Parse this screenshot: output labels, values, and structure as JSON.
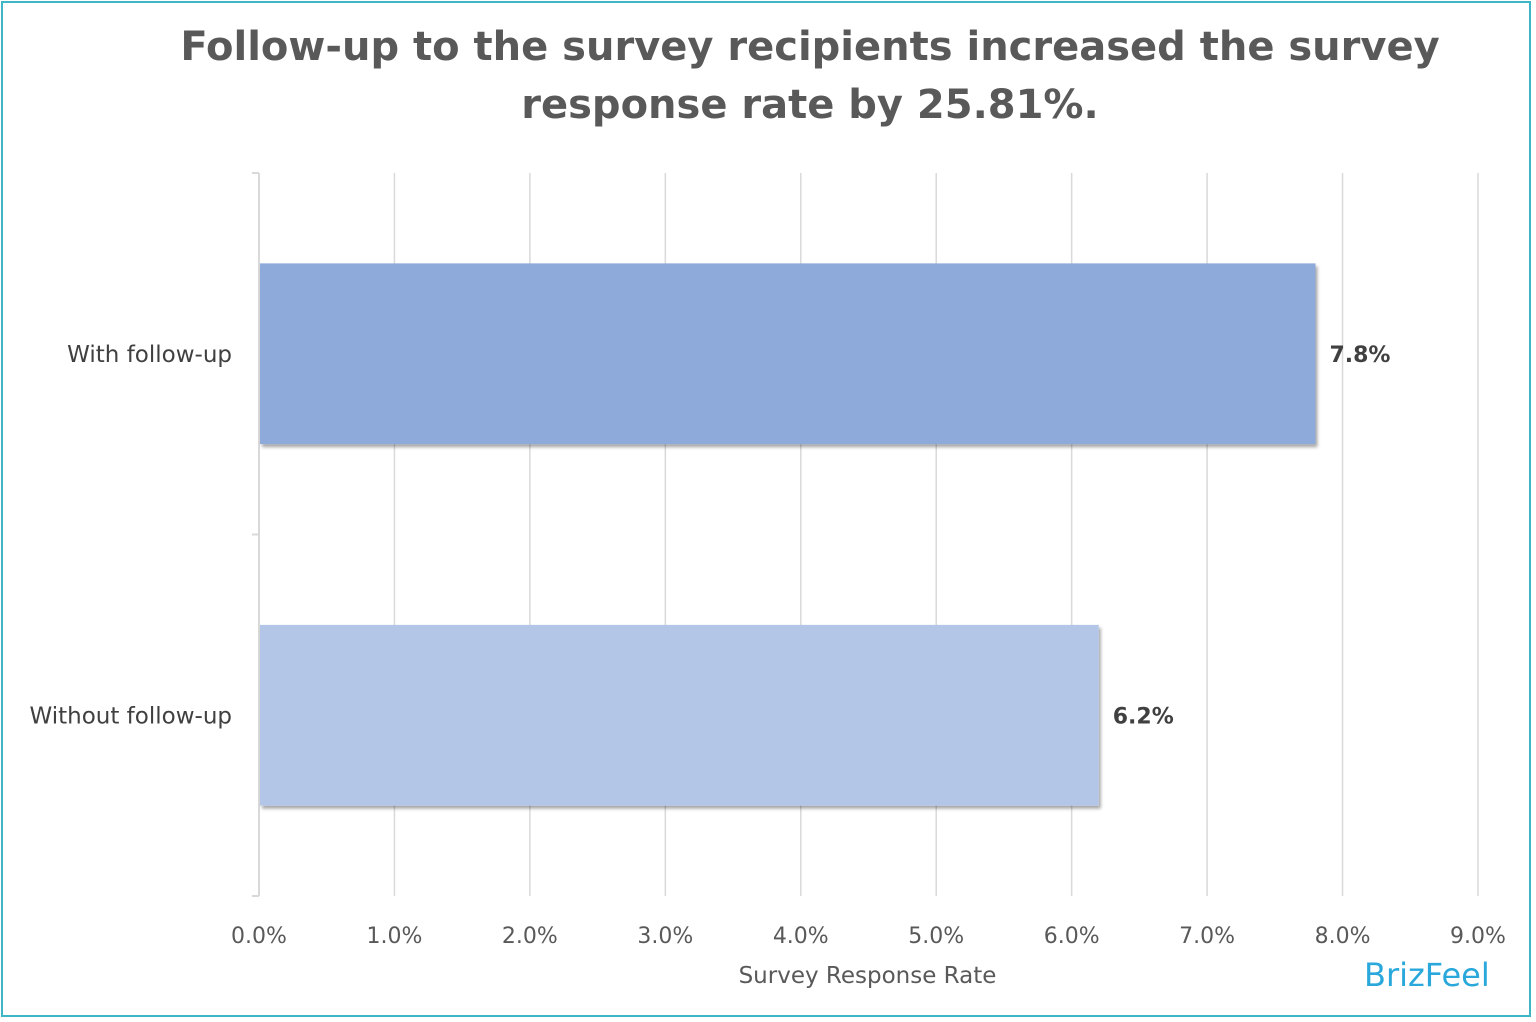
{
  "chart_data": {
    "type": "bar",
    "orientation": "horizontal",
    "title": "Follow-up to the survey recipients increased the survey response rate by 25.81%.",
    "categories": [
      "With follow-up",
      "Without follow-up"
    ],
    "values": [
      7.8,
      6.2
    ],
    "data_labels": [
      "7.8%",
      "6.2%"
    ],
    "xlabel": "Survey Response Rate",
    "ylabel": "",
    "xlim": [
      0,
      9
    ],
    "x_ticks": [
      "0.0%",
      "1.0%",
      "2.0%",
      "3.0%",
      "4.0%",
      "5.0%",
      "6.0%",
      "7.0%",
      "8.0%",
      "9.0%"
    ],
    "grid": true,
    "legend": "none",
    "colors": [
      "#8eaadb",
      "#b4c6e7"
    ]
  },
  "brand": {
    "name": "BrizFeel",
    "color": "#2aa8dc"
  },
  "frame_color": "#3fb6c6"
}
